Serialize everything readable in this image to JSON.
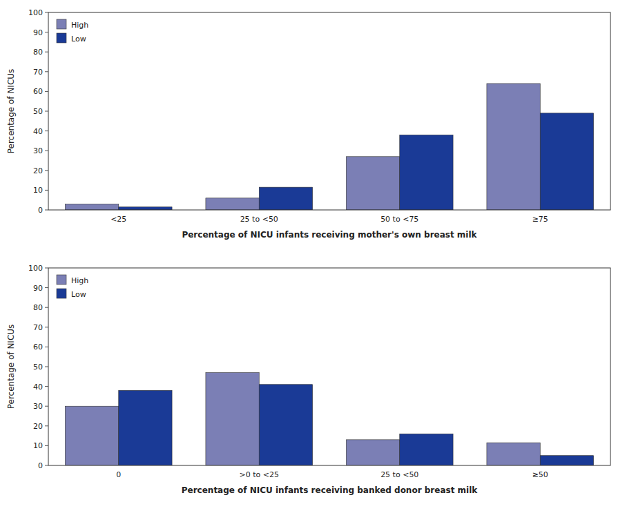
{
  "chart_data": [
    {
      "type": "bar",
      "categories": [
        "<25",
        "25 to <50",
        "50 to <75",
        "≥75"
      ],
      "series": [
        {
          "name": "High",
          "color": "#7b7fb5",
          "values": [
            3,
            6,
            27,
            64
          ]
        },
        {
          "name": "Low",
          "color": "#1a3a96",
          "values": [
            1.5,
            11.5,
            38,
            49
          ]
        }
      ],
      "xlabel": "Percentage of NICU infants receiving mother's own breast milk",
      "ylabel": "Percentage of NICUs",
      "ylim": [
        0,
        100
      ],
      "yticks": [
        0,
        10,
        20,
        30,
        40,
        50,
        60,
        70,
        80,
        90,
        100
      ],
      "grid": false,
      "legend": "upper left"
    },
    {
      "type": "bar",
      "categories": [
        "0",
        ">0 to <25",
        "25 to <50",
        "≥50"
      ],
      "series": [
        {
          "name": "High",
          "color": "#7b7fb5",
          "values": [
            30,
            47,
            13,
            11.5
          ]
        },
        {
          "name": "Low",
          "color": "#1a3a96",
          "values": [
            38,
            41,
            16,
            5
          ]
        }
      ],
      "xlabel": "Percentage of NICU infants receiving banked donor breast milk",
      "ylabel": "Percentage of NICUs",
      "ylim": [
        0,
        100
      ],
      "yticks": [
        0,
        10,
        20,
        30,
        40,
        50,
        60,
        70,
        80,
        90,
        100
      ],
      "grid": false,
      "legend": "upper left"
    }
  ]
}
